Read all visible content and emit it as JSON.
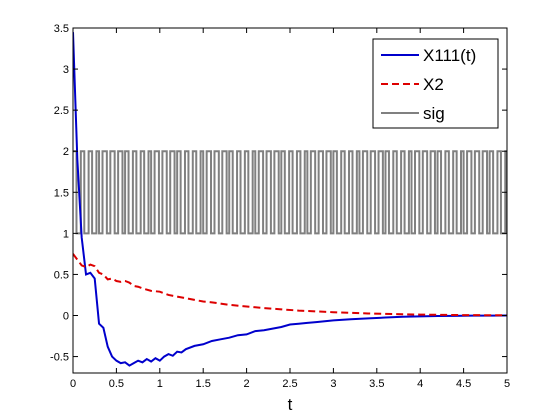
{
  "chart_data": {
    "type": "line",
    "title": "",
    "xlabel": "t",
    "ylabel": "",
    "xlim": [
      0,
      5
    ],
    "ylim": [
      -0.7,
      3.5
    ],
    "grid": false,
    "legend": {
      "placement": "top-right",
      "entries": [
        "X111(t)",
        "X2",
        "sig"
      ]
    },
    "xticks": [
      "0",
      "0.5",
      "1",
      "1.5",
      "2",
      "2.5",
      "3",
      "3.5",
      "4",
      "4.5",
      "5"
    ],
    "xtick_values": [
      0,
      0.5,
      1,
      1.5,
      2,
      2.5,
      3,
      3.5,
      4,
      4.5,
      5
    ],
    "yticks": [
      "-0.5",
      "0",
      "0.5",
      "1",
      "1.5",
      "2",
      "2.5",
      "3",
      "3.5"
    ],
    "ytick_values": [
      -0.5,
      0,
      0.5,
      1,
      1.5,
      2,
      2.5,
      3,
      3.5
    ],
    "series": [
      {
        "name": "X111(t)",
        "color": "#0000cc",
        "style": "solid",
        "x": [
          0,
          0.05,
          0.1,
          0.15,
          0.2,
          0.25,
          0.3,
          0.35,
          0.4,
          0.45,
          0.5,
          0.55,
          0.6,
          0.65,
          0.7,
          0.75,
          0.8,
          0.85,
          0.9,
          0.95,
          1.0,
          1.05,
          1.1,
          1.15,
          1.2,
          1.25,
          1.3,
          1.4,
          1.5,
          1.6,
          1.7,
          1.8,
          1.9,
          2.0,
          2.1,
          2.2,
          2.3,
          2.4,
          2.5,
          2.6,
          2.7,
          2.8,
          2.9,
          3.0,
          3.2,
          3.4,
          3.6,
          3.8,
          4.0,
          4.2,
          4.4,
          4.6,
          4.8,
          5.0
        ],
        "y": [
          3.45,
          1.9,
          0.95,
          0.5,
          0.52,
          0.45,
          -0.1,
          -0.15,
          -0.38,
          -0.5,
          -0.55,
          -0.58,
          -0.57,
          -0.61,
          -0.58,
          -0.55,
          -0.57,
          -0.53,
          -0.56,
          -0.52,
          -0.55,
          -0.5,
          -0.47,
          -0.49,
          -0.44,
          -0.45,
          -0.41,
          -0.37,
          -0.35,
          -0.31,
          -0.29,
          -0.27,
          -0.24,
          -0.23,
          -0.19,
          -0.18,
          -0.16,
          -0.14,
          -0.11,
          -0.1,
          -0.09,
          -0.08,
          -0.07,
          -0.06,
          -0.045,
          -0.035,
          -0.025,
          -0.015,
          -0.01,
          -0.006,
          -0.004,
          -0.002,
          -0.001,
          0.0
        ]
      },
      {
        "name": "X2",
        "color": "#dd0000",
        "style": "dashed",
        "x": [
          0,
          0.05,
          0.1,
          0.15,
          0.2,
          0.25,
          0.3,
          0.35,
          0.4,
          0.45,
          0.5,
          0.55,
          0.6,
          0.65,
          0.7,
          0.75,
          0.8,
          0.9,
          1.0,
          1.1,
          1.2,
          1.3,
          1.4,
          1.5,
          1.6,
          1.8,
          2.0,
          2.2,
          2.4,
          2.6,
          2.8,
          3.0,
          3.2,
          3.4,
          3.6,
          3.8,
          4.0,
          4.5,
          5.0
        ],
        "y": [
          0.75,
          0.68,
          0.61,
          0.59,
          0.62,
          0.6,
          0.52,
          0.5,
          0.44,
          0.45,
          0.42,
          0.41,
          0.42,
          0.4,
          0.36,
          0.35,
          0.33,
          0.3,
          0.29,
          0.25,
          0.23,
          0.21,
          0.19,
          0.17,
          0.16,
          0.13,
          0.11,
          0.09,
          0.075,
          0.06,
          0.05,
          0.04,
          0.032,
          0.025,
          0.02,
          0.015,
          0.011,
          0.005,
          0.002
        ]
      },
      {
        "name": "sig",
        "color": "#808080",
        "style": "step",
        "x": [
          0.0,
          0.04,
          0.09,
          0.13,
          0.18,
          0.22,
          0.27,
          0.3,
          0.34,
          0.39,
          0.43,
          0.48,
          0.52,
          0.57,
          0.6,
          0.64,
          0.69,
          0.73,
          0.78,
          0.82,
          0.87,
          0.9,
          0.94,
          0.99,
          1.03,
          1.08,
          1.12,
          1.17,
          1.2,
          1.24,
          1.29,
          1.33,
          1.38,
          1.42,
          1.47,
          1.5,
          1.54,
          1.59,
          1.63,
          1.68,
          1.72,
          1.77,
          1.8,
          1.84,
          1.89,
          1.93,
          1.98,
          2.02,
          2.07,
          2.1,
          2.14,
          2.19,
          2.23,
          2.28,
          2.32,
          2.37,
          2.4,
          2.44,
          2.49,
          2.53,
          2.58,
          2.62,
          2.67,
          2.7,
          2.74,
          2.79,
          2.83,
          2.88,
          2.92,
          2.97,
          3.0,
          3.04,
          3.09,
          3.13,
          3.18,
          3.22,
          3.27,
          3.3,
          3.34,
          3.39,
          3.43,
          3.48,
          3.52,
          3.57,
          3.6,
          3.64,
          3.69,
          3.73,
          3.78,
          3.82,
          3.87,
          3.9,
          3.94,
          3.99,
          4.03,
          4.08,
          4.12,
          4.17,
          4.2,
          4.24,
          4.29,
          4.33,
          4.38,
          4.42,
          4.47,
          4.5,
          4.54,
          4.59,
          4.63,
          4.68,
          4.72,
          4.77,
          4.8,
          4.84,
          4.89,
          4.93,
          4.98,
          5.0
        ],
        "y": [
          2,
          1,
          2,
          1,
          2,
          1,
          2,
          1,
          2,
          1,
          2,
          1,
          2,
          1,
          2,
          1,
          2,
          1,
          2,
          1,
          2,
          1,
          2,
          1,
          2,
          1,
          2,
          1,
          2,
          1,
          2,
          1,
          2,
          1,
          2,
          1,
          2,
          1,
          2,
          1,
          2,
          1,
          2,
          1,
          2,
          1,
          2,
          1,
          2,
          1,
          2,
          1,
          2,
          1,
          2,
          1,
          2,
          1,
          2,
          1,
          2,
          1,
          2,
          1,
          2,
          1,
          2,
          1,
          2,
          1,
          2,
          1,
          2,
          1,
          2,
          1,
          2,
          1,
          2,
          1,
          2,
          1,
          2,
          1,
          2,
          1,
          2,
          1,
          2,
          1,
          2,
          1,
          2,
          1,
          2,
          1,
          2,
          1,
          2,
          1,
          2,
          1,
          2,
          1,
          2,
          1,
          2,
          1,
          2,
          1,
          2,
          1,
          2,
          1,
          2,
          1,
          2,
          1
        ]
      }
    ]
  }
}
